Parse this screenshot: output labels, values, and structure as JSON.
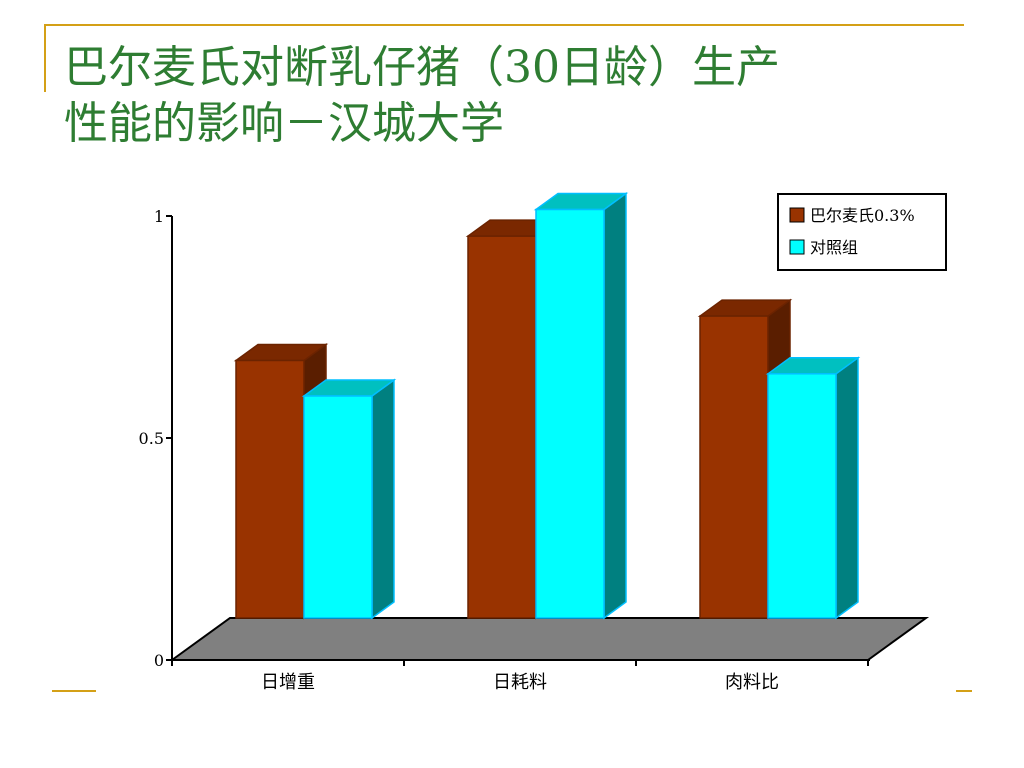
{
  "slide": {
    "title_line1": "巴尔麦氏对断乳仔猪（30日龄）生产",
    "title_line2": "性能的影响－汉城大学"
  },
  "colors": {
    "accent": "#d4a017",
    "title": "#2e7d32",
    "series1_front": "#993300",
    "series2_front": "#00ffff",
    "floor": "#808080"
  },
  "chart_data": {
    "type": "bar",
    "categories": [
      "日增重",
      "日耗料",
      "肉料比"
    ],
    "series": [
      {
        "name": "巴尔麦氏0.3%",
        "values": [
          0.58,
          0.86,
          0.68
        ]
      },
      {
        "name": "对照组",
        "values": [
          0.5,
          0.92,
          0.55
        ]
      }
    ],
    "ylim": [
      0,
      1
    ],
    "yticks": [
      0,
      0.5,
      1
    ],
    "ytick_labels": [
      "0",
      "0.5",
      "1"
    ],
    "legend_position": "top-right",
    "grid": false,
    "style": "3d-bar"
  }
}
